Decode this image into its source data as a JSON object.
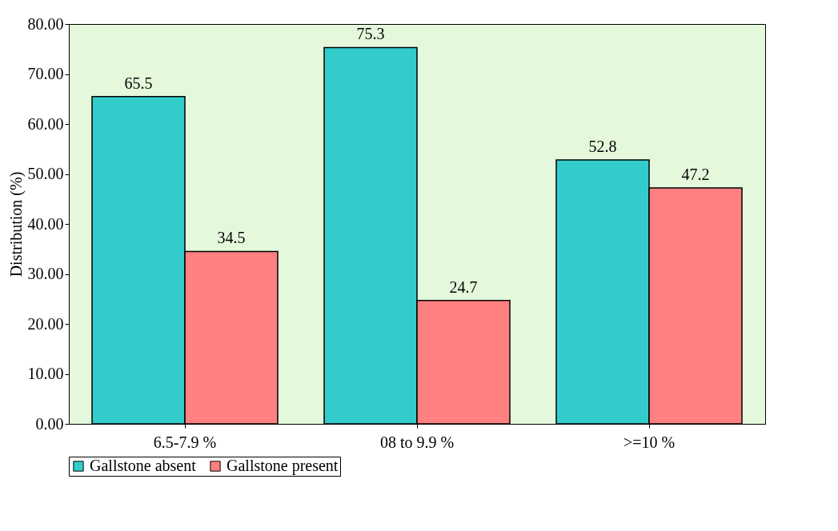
{
  "chart_data": {
    "type": "bar",
    "ylabel": "Distribution (%)",
    "categories": [
      "6.5-7.9 %",
      "08 to 9.9 %",
      ">=10 %"
    ],
    "series": [
      {
        "name": "Gallstone absent",
        "color": "#33cccc",
        "values": [
          65.5,
          75.3,
          52.8
        ]
      },
      {
        "name": "Gallstone present",
        "color": "#ff8080",
        "values": [
          34.5,
          24.7,
          47.2
        ]
      }
    ],
    "ylim": [
      0,
      80
    ],
    "yticks": [
      {
        "value": 0,
        "label": "0.00"
      },
      {
        "value": 10,
        "label": "10.00"
      },
      {
        "value": 20,
        "label": "20.00"
      },
      {
        "value": 30,
        "label": "30.00"
      },
      {
        "value": 40,
        "label": "40.00"
      },
      {
        "value": 50,
        "label": "50.00"
      },
      {
        "value": 60,
        "label": "60.00"
      },
      {
        "value": 70,
        "label": "70.00"
      },
      {
        "value": 80,
        "label": "80.00"
      }
    ],
    "data_labels": true,
    "grid": false,
    "legend": "bottom"
  }
}
